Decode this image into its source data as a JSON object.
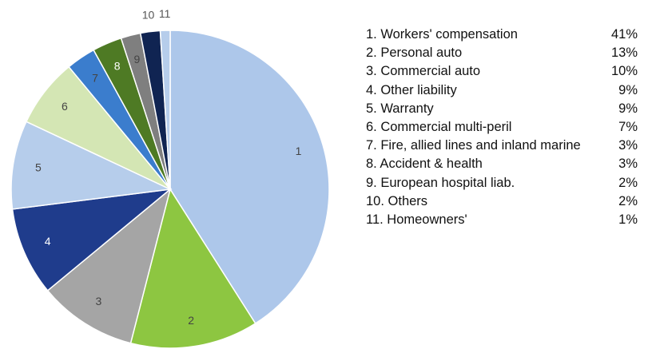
{
  "chart_data": {
    "type": "pie",
    "categories": [
      "1. Workers' compensation",
      "2. Personal auto",
      "3. Commercial auto",
      "4. Other liability",
      "5. Warranty",
      "6. Commercial multi-peril",
      "7. Fire, allied lines and inland marine",
      "8. Accident & health",
      "9. European hospital liab.",
      "10. Others",
      "11. Homeowners'"
    ],
    "slice_labels": [
      "1",
      "2",
      "3",
      "4",
      "5",
      "6",
      "7",
      "8",
      "9",
      "10",
      "11"
    ],
    "values": [
      41,
      13,
      10,
      9,
      9,
      7,
      3,
      3,
      2,
      2,
      1
    ],
    "value_labels": [
      "41%",
      "13%",
      "10%",
      "9%",
      "9%",
      "7%",
      "3%",
      "3%",
      "2%",
      "2%",
      "1%"
    ],
    "colors": [
      "#adc7ea",
      "#8dc641",
      "#a5a5a5",
      "#1f3c8c",
      "#b6cdeb",
      "#d4e6b4",
      "#3b7dcd",
      "#4e7a24",
      "#7f7f7f",
      "#102452",
      "#b6cdeb"
    ]
  }
}
